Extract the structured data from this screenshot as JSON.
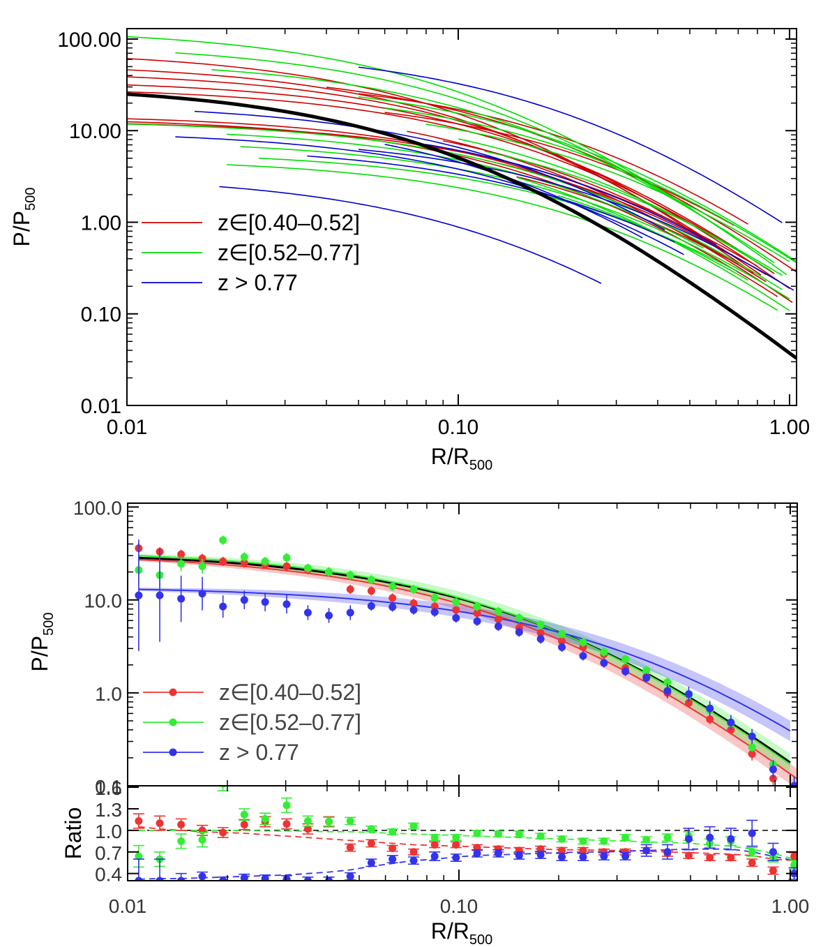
{
  "chart_data": [
    {
      "panel": "top",
      "type": "line",
      "xlabel": "R/R",
      "xlabel_sub": "500",
      "ylabel": "P/P",
      "ylabel_sub": "500",
      "xscale": "log",
      "yscale": "log",
      "xlim": [
        0.01,
        1.05
      ],
      "ylim": [
        0.01,
        130
      ],
      "xticks": [
        {
          "v": 0.01,
          "label": "0.01"
        },
        {
          "v": 0.1,
          "label": "0.10"
        },
        {
          "v": 1.0,
          "label": "1.00"
        }
      ],
      "yticks": [
        {
          "v": 0.01,
          "label": "0.01"
        },
        {
          "v": 0.1,
          "label": "0.10"
        },
        {
          "v": 1.0,
          "label": "1.00"
        },
        {
          "v": 10,
          "label": "10.00"
        },
        {
          "v": 100,
          "label": "100.00"
        }
      ],
      "legend_position": "bottom-left",
      "legend": [
        {
          "label": "z∈[0.40–0.52]",
          "color": "#cc0000"
        },
        {
          "label": "z∈[0.52–0.77]",
          "color": "#00dd00"
        },
        {
          "label": "z > 0.77",
          "color": "#0000cc"
        }
      ],
      "mean_profile": {
        "color": "#000000",
        "P0": 32,
        "c": 8.5
      },
      "series": [
        {
          "group": 0,
          "color": "#cc0000",
          "curves": [
            {
              "P0": 75,
              "c": 7.0,
              "xmin": 0.01,
              "xmax": 0.78
            },
            {
              "P0": 55,
              "c": 6.0,
              "xmin": 0.01,
              "xmax": 0.82
            },
            {
              "P0": 45,
              "c": 5.2,
              "xmin": 0.01,
              "xmax": 1.0
            },
            {
              "P0": 36,
              "c": 4.5,
              "xmin": 0.01,
              "xmax": 0.7
            },
            {
              "P0": 30,
              "c": 4.2,
              "xmin": 0.01,
              "xmax": 0.9
            },
            {
              "P0": 15,
              "c": 3.6,
              "xmin": 0.01,
              "xmax": 0.85
            },
            {
              "P0": 14,
              "c": 3.8,
              "xmin": 0.01,
              "xmax": 0.92
            },
            {
              "P0": 13,
              "c": 3.0,
              "xmin": 0.01,
              "xmax": 0.8
            },
            {
              "P0": 48,
              "c": 4.3,
              "xmin": 0.04,
              "xmax": 1.05
            },
            {
              "P0": 40,
              "c": 3.3,
              "xmin": 0.05,
              "xmax": 0.75
            },
            {
              "P0": 26,
              "c": 3.0,
              "xmin": 0.06,
              "xmax": 0.68
            },
            {
              "P0": 22,
              "c": 4.4,
              "xmin": 0.07,
              "xmax": 1.02
            },
            {
              "P0": 18,
              "c": 3.6,
              "xmin": 0.09,
              "xmax": 0.6
            },
            {
              "P0": 12,
              "c": 3.0,
              "xmin": 0.12,
              "xmax": 0.85
            },
            {
              "P0": 9,
              "c": 2.8,
              "xmin": 0.15,
              "xmax": 0.7
            }
          ]
        },
        {
          "group": 1,
          "color": "#00dd00",
          "curves": [
            {
              "P0": 130,
              "c": 7.0,
              "xmin": 0.01,
              "xmax": 0.98
            },
            {
              "P0": 13,
              "c": 3.3,
              "xmin": 0.01,
              "xmax": 0.95
            },
            {
              "P0": 90,
              "c": 6.0,
              "xmin": 0.014,
              "xmax": 0.62
            },
            {
              "P0": 60,
              "c": 5.0,
              "xmin": 0.018,
              "xmax": 0.9
            },
            {
              "P0": 11,
              "c": 3.2,
              "xmin": 0.02,
              "xmax": 0.55
            },
            {
              "P0": 8,
              "c": 2.8,
              "xmin": 0.022,
              "xmax": 1.0
            },
            {
              "P0": 6,
              "c": 2.5,
              "xmin": 0.025,
              "xmax": 0.7
            },
            {
              "P0": 5,
              "c": 2.8,
              "xmin": 0.02,
              "xmax": 0.92
            },
            {
              "P0": 38,
              "c": 3.5,
              "xmin": 0.05,
              "xmax": 1.05
            },
            {
              "P0": 30,
              "c": 3.2,
              "xmin": 0.06,
              "xmax": 1.05
            },
            {
              "P0": 22,
              "c": 2.9,
              "xmin": 0.08,
              "xmax": 1.0
            },
            {
              "P0": 20,
              "c": 3.5,
              "xmin": 0.1,
              "xmax": 0.88
            },
            {
              "P0": 15,
              "c": 3.0,
              "xmin": 0.12,
              "xmax": 0.95
            },
            {
              "P0": 12,
              "c": 3.8,
              "xmin": 0.15,
              "xmax": 1.0
            },
            {
              "P0": 8,
              "c": 3.0,
              "xmin": 0.2,
              "xmax": 0.75
            }
          ]
        },
        {
          "group": 2,
          "color": "#0000cc",
          "curves": [
            {
              "P0": 80,
              "c": 3.5,
              "xmin": 0.05,
              "xmax": 0.95
            },
            {
              "P0": 20,
              "c": 4.5,
              "xmin": 0.016,
              "xmax": 0.42
            },
            {
              "P0": 10,
              "c": 3.8,
              "xmin": 0.014,
              "xmax": 0.48
            },
            {
              "P0": 7,
              "c": 2.8,
              "xmin": 0.035,
              "xmax": 0.45
            },
            {
              "P0": 3.3,
              "c": 5.5,
              "xmin": 0.019,
              "xmax": 0.27
            },
            {
              "P0": 16,
              "c": 5.2,
              "xmin": 0.06,
              "xmax": 0.36
            },
            {
              "P0": 14,
              "c": 3.2,
              "xmin": 0.08,
              "xmax": 0.6
            },
            {
              "P0": 9,
              "c": 2.6,
              "xmin": 0.05,
              "xmax": 1.03
            }
          ]
        }
      ]
    },
    {
      "panel": "bottom-main",
      "type": "scatter",
      "xlabel": "R/R",
      "xlabel_sub": "500",
      "ylabel": "P/P",
      "ylabel_sub": "500",
      "xscale": "log",
      "yscale": "log",
      "xlim": [
        0.01,
        1.05
      ],
      "ylim": [
        0.1,
        110
      ],
      "xticks": [
        {
          "v": 0.01,
          "label": "0.01"
        },
        {
          "v": 0.1,
          "label": "0.10"
        },
        {
          "v": 1.0,
          "label": "1.00"
        }
      ],
      "yticks": [
        {
          "v": 0.1,
          "label": "0.1"
        },
        {
          "v": 1.0,
          "label": "1.0"
        },
        {
          "v": 10,
          "label": "10.0"
        },
        {
          "v": 100,
          "label": "100.0"
        }
      ],
      "legend_position": "bottom-left",
      "legend": [
        {
          "label": "z∈[0.40–0.52]",
          "color": "#ee3333"
        },
        {
          "label": "z∈[0.52–0.77]",
          "color": "#33ee33"
        },
        {
          "label": "z > 0.77",
          "color": "#3333ee"
        }
      ],
      "x": [
        0.0108,
        0.0125,
        0.0145,
        0.0168,
        0.0194,
        0.0225,
        0.026,
        0.0302,
        0.035,
        0.0405,
        0.047,
        0.0544,
        0.063,
        0.073,
        0.0845,
        0.098,
        0.1135,
        0.1315,
        0.152,
        0.1765,
        0.2045,
        0.237,
        0.274,
        0.318,
        0.368,
        0.426,
        0.494,
        0.572,
        0.662,
        0.767,
        0.888,
        1.028
      ],
      "reference_profile": {
        "color": "#000000",
        "P0": 33,
        "c": 4.7,
        "xmin": 0.0108,
        "xmax": 1.0
      },
      "series": [
        {
          "name": "z∈[0.40–0.52]",
          "color": "#ee3333",
          "fit": {
            "P0": 32,
            "c": 5.2,
            "xmin": 0.0108,
            "xmax": 1.05
          },
          "y": [
            36,
            33,
            31,
            28,
            26,
            25,
            24,
            23,
            21,
            20,
            13,
            12.5,
            10.5,
            9.2,
            8.5,
            7.8,
            7.2,
            6.2,
            5.0,
            4.4,
            3.6,
            3.1,
            2.6,
            1.85,
            1.5,
            1.0,
            0.78,
            0.52,
            0.4,
            0.22,
            0.12,
            0.1
          ],
          "err": [
            0.05,
            0.05,
            0.05,
            0.05,
            0.05,
            0.05,
            0.05,
            0.05,
            0.05,
            0.05,
            0.05,
            0.05,
            0.05,
            0.05,
            0.05,
            0.05,
            0.05,
            0.05,
            0.05,
            0.05,
            0.05,
            0.05,
            0.05,
            0.05,
            0.05,
            0.05,
            0.05,
            0.05,
            0.05,
            0.07,
            0.1,
            0.1
          ]
        },
        {
          "name": "z∈[0.52–0.77]",
          "color": "#33ee33",
          "fit": {
            "P0": 35,
            "c": 4.9,
            "xmin": 0.0108,
            "xmax": 1.0
          },
          "y": [
            21,
            18.5,
            24.5,
            23,
            44,
            29,
            26,
            28.5,
            22,
            20,
            18.5,
            16.5,
            14,
            13,
            10.5,
            9.5,
            8.5,
            7.5,
            6.4,
            5.4,
            4.3,
            3.5,
            2.75,
            2.3,
            1.75,
            1.3,
            0.95,
            0.65,
            0.47,
            0.26,
            0.17,
            0.1
          ],
          "err": [
            0.15,
            0.2,
            0.08,
            0.08,
            0.05,
            0.05,
            0.05,
            0.05,
            0.05,
            0.05,
            0.05,
            0.05,
            0.05,
            0.05,
            0.05,
            0.05,
            0.05,
            0.05,
            0.05,
            0.05,
            0.05,
            0.05,
            0.05,
            0.05,
            0.05,
            0.05,
            0.05,
            0.05,
            0.05,
            0.05,
            0.05,
            0.05
          ]
        },
        {
          "name": "z > 0.77",
          "color": "#3333ee",
          "fit": {
            "P0": 14,
            "c": 2.3,
            "xmin": 0.0108,
            "xmax": 1.0
          },
          "y": [
            11.2,
            11.2,
            10.3,
            11.7,
            8.5,
            10,
            9.5,
            9,
            7.3,
            6.8,
            7.3,
            8.6,
            8.4,
            7.8,
            7.4,
            6.4,
            5.9,
            5.2,
            4.5,
            3.8,
            3.1,
            2.5,
            2.1,
            1.7,
            1.45,
            1.05,
            0.97,
            0.68,
            0.48,
            0.34,
            0.15,
            0.1
          ],
          "err": [
            0.6,
            0.5,
            0.25,
            0.18,
            0.12,
            0.1,
            0.1,
            0.1,
            0.08,
            0.08,
            0.08,
            0.05,
            0.05,
            0.05,
            0.05,
            0.05,
            0.05,
            0.05,
            0.05,
            0.05,
            0.05,
            0.05,
            0.05,
            0.05,
            0.05,
            0.08,
            0.08,
            0.08,
            0.08,
            0.08,
            0.1,
            0.1
          ]
        }
      ]
    },
    {
      "panel": "bottom-ratio",
      "type": "scatter",
      "ylabel": "Ratio",
      "xscale": "log",
      "xlim": [
        0.01,
        1.05
      ],
      "ylim": [
        0.3,
        1.62
      ],
      "yticks": [
        {
          "v": 0.4,
          "label": "0.4"
        },
        {
          "v": 0.7,
          "label": "0.7"
        },
        {
          "v": 1.0,
          "label": "1.0"
        },
        {
          "v": 1.3,
          "label": "1.3"
        },
        {
          "v": 1.6,
          "label": "1.6"
        }
      ],
      "reference_line": 1.0,
      "x": [
        0.0108,
        0.0125,
        0.0145,
        0.0168,
        0.0194,
        0.0225,
        0.026,
        0.0302,
        0.035,
        0.0405,
        0.047,
        0.0544,
        0.063,
        0.073,
        0.0845,
        0.098,
        0.1135,
        0.1315,
        0.152,
        0.1765,
        0.2045,
        0.237,
        0.274,
        0.318,
        0.368,
        0.426,
        0.494,
        0.572,
        0.662,
        0.767,
        0.888,
        1.028
      ],
      "series": [
        {
          "name": "z∈[0.40–0.52]",
          "color": "#ee3333",
          "y": [
            1.13,
            1.1,
            1.08,
            1.0,
            0.97,
            1.08,
            1.12,
            1.09,
            1.02,
            1.12,
            0.76,
            0.82,
            0.75,
            0.7,
            0.8,
            0.8,
            0.76,
            0.74,
            0.72,
            0.74,
            0.72,
            0.72,
            0.7,
            0.7,
            0.72,
            0.68,
            0.65,
            0.62,
            0.62,
            0.55,
            0.44,
            0.64
          ],
          "err": [
            0.1,
            0.1,
            0.08,
            0.07,
            0.07,
            0.07,
            0.07,
            0.07,
            0.07,
            0.07,
            0.05,
            0.05,
            0.04,
            0.04,
            0.04,
            0.04,
            0.04,
            0.04,
            0.04,
            0.04,
            0.04,
            0.04,
            0.04,
            0.04,
            0.04,
            0.04,
            0.04,
            0.04,
            0.04,
            0.05,
            0.05,
            0.05
          ],
          "trend": [
            1.05,
            1.02,
            1.0,
            0.98,
            0.97,
            0.96,
            0.94,
            0.92,
            0.9,
            0.88,
            0.86,
            0.84,
            0.82,
            0.8,
            0.79,
            0.78,
            0.77,
            0.76,
            0.75,
            0.74,
            0.73,
            0.73,
            0.72,
            0.72,
            0.71,
            0.7,
            0.69,
            0.68,
            0.67,
            0.65,
            0.6,
            0.58
          ]
        },
        {
          "name": "z∈[0.52–0.77]",
          "color": "#33ee33",
          "y": [
            0.64,
            0.6,
            0.85,
            0.87,
            1.65,
            1.22,
            1.16,
            1.35,
            1.13,
            1.12,
            1.13,
            1.02,
            0.98,
            1.06,
            0.9,
            0.9,
            0.96,
            0.95,
            0.95,
            0.92,
            0.88,
            0.85,
            0.85,
            0.9,
            0.87,
            0.9,
            0.92,
            0.82,
            0.85,
            0.7,
            0.62,
            0.52
          ],
          "err": [
            0.15,
            0.1,
            0.1,
            0.1,
            0.1,
            0.08,
            0.08,
            0.1,
            0.07,
            0.06,
            0.05,
            0.04,
            0.04,
            0.04,
            0.04,
            0.04,
            0.04,
            0.04,
            0.04,
            0.04,
            0.04,
            0.04,
            0.04,
            0.04,
            0.04,
            0.05,
            0.06,
            0.06,
            0.06,
            0.06,
            0.06,
            0.06
          ],
          "trend": [
            1.0,
            1.0,
            1.0,
            1.0,
            1.0,
            1.0,
            0.99,
            0.99,
            0.99,
            0.98,
            0.98,
            0.97,
            0.96,
            0.95,
            0.94,
            0.93,
            0.92,
            0.91,
            0.9,
            0.89,
            0.88,
            0.87,
            0.86,
            0.85,
            0.84,
            0.83,
            0.82,
            0.8,
            0.78,
            0.74,
            0.68,
            0.6
          ]
        },
        {
          "name": "z > 0.77",
          "color": "#3333ee",
          "y": [
            0.3,
            0.3,
            0.3,
            0.36,
            0.3,
            0.34,
            0.33,
            0.32,
            0.3,
            0.3,
            0.36,
            0.55,
            0.6,
            0.58,
            0.64,
            0.62,
            0.68,
            0.68,
            0.65,
            0.66,
            0.63,
            0.63,
            0.64,
            0.64,
            0.72,
            0.7,
            0.88,
            0.9,
            0.88,
            0.96,
            0.7,
            0.4
          ],
          "err": [
            0.3,
            0.3,
            0.1,
            0.06,
            0.05,
            0.05,
            0.05,
            0.05,
            0.05,
            0.05,
            0.05,
            0.05,
            0.05,
            0.05,
            0.06,
            0.05,
            0.05,
            0.05,
            0.05,
            0.05,
            0.05,
            0.05,
            0.05,
            0.05,
            0.08,
            0.1,
            0.15,
            0.15,
            0.15,
            0.18,
            0.12,
            0.08
          ],
          "trend": [
            0.32,
            0.33,
            0.33,
            0.34,
            0.35,
            0.36,
            0.37,
            0.38,
            0.4,
            0.42,
            0.45,
            0.5,
            0.54,
            0.58,
            0.6,
            0.63,
            0.65,
            0.66,
            0.67,
            0.68,
            0.69,
            0.7,
            0.7,
            0.71,
            0.72,
            0.73,
            0.74,
            0.74,
            0.74,
            0.7,
            0.64,
            0.58
          ]
        }
      ]
    }
  ]
}
